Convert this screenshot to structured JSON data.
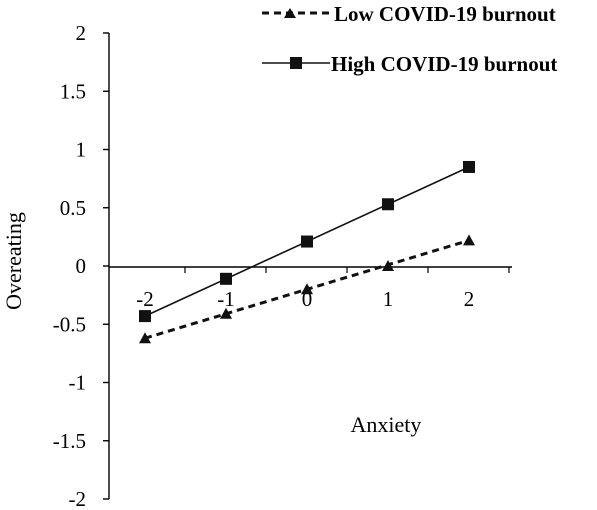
{
  "chart_data": {
    "type": "line",
    "xlabel": "Anxiety",
    "ylabel": "Overeating",
    "x": [
      -2,
      -1,
      0,
      1,
      2
    ],
    "xlim": [
      -2.4,
      2.4
    ],
    "ylim": [
      -2,
      2
    ],
    "x_ticks": [
      "-2",
      "-1",
      "0",
      "1",
      "2"
    ],
    "y_ticks": [
      "2",
      "1.5",
      "1",
      "0.5",
      "0",
      "-0.5",
      "-1",
      "-1.5",
      "-2"
    ],
    "y_tick_values": [
      2,
      1.5,
      1,
      0.5,
      0,
      -0.5,
      -1,
      -1.5,
      -2
    ],
    "grid": false,
    "legend_position": "top-right",
    "series": [
      {
        "name": "Low COVID-19 burnout",
        "values": [
          -0.62,
          -0.41,
          -0.2,
          0.0,
          0.22
        ],
        "line": "dashed",
        "marker": "triangle",
        "fit_line": [
          -0.62,
          0.22
        ]
      },
      {
        "name": "High COVID-19 burnout",
        "values": [
          -0.43,
          -0.11,
          0.21,
          0.53,
          0.85
        ],
        "line": "solid",
        "marker": "square",
        "fit_line": [
          -0.43,
          0.85
        ]
      }
    ],
    "colors": {
      "series": "#111111",
      "axis": "#000000"
    }
  }
}
